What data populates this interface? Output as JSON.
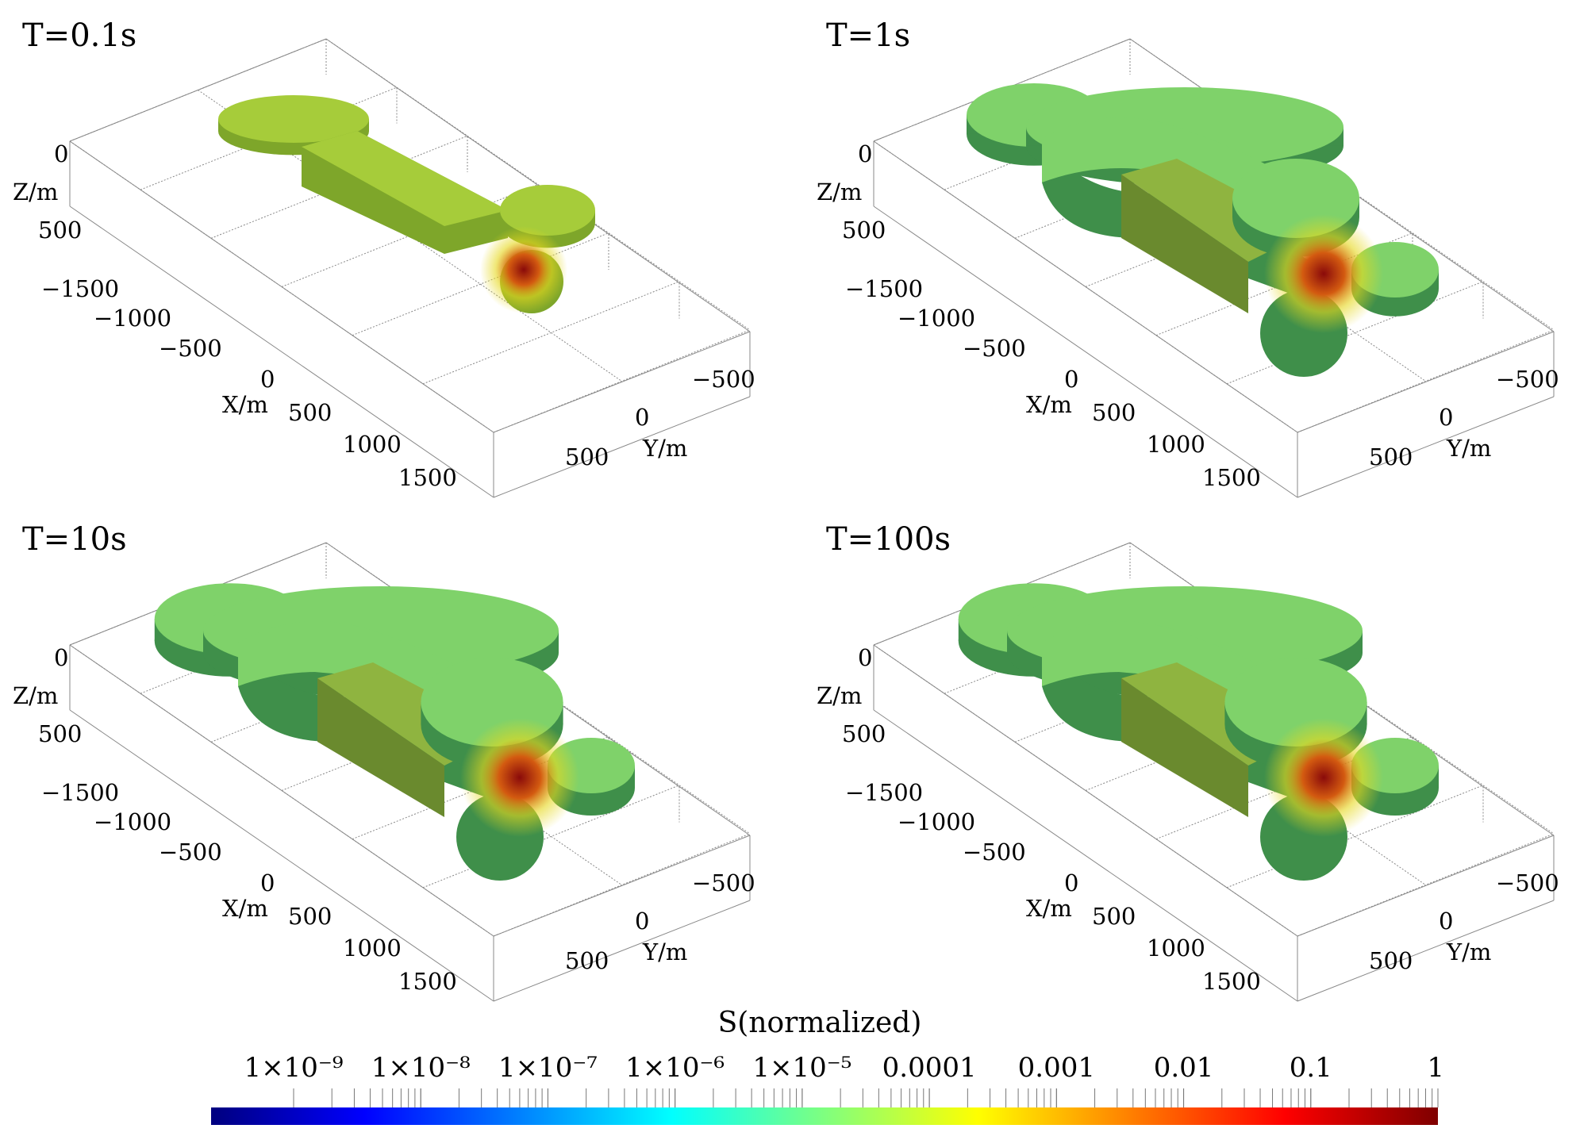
{
  "panels": [
    {
      "title": "T=0.1s",
      "stage": 0
    },
    {
      "title": "T=1s",
      "stage": 1
    },
    {
      "title": "T=10s",
      "stage": 2
    },
    {
      "title": "T=100s",
      "stage": 3
    }
  ],
  "axes": {
    "z_label": "Z/m",
    "z_ticks": [
      "0",
      "500"
    ],
    "x_label": "X/m",
    "x_ticks": [
      "−1500",
      "−1000",
      "−500",
      "0",
      "500",
      "1000",
      "1500"
    ],
    "y_label": "Y/m",
    "y_ticks": [
      "−500",
      "0",
      "500"
    ]
  },
  "colorbar": {
    "title": "S(normalized)",
    "labels": [
      "1×10⁻⁹",
      "1×10⁻⁸",
      "1×10⁻⁷",
      "1×10⁻⁶",
      "1×10⁻⁵",
      "0.0001",
      "0.001",
      "0.01",
      "0.1",
      "1"
    ],
    "colors": [
      "#00007f",
      "#0000ff",
      "#007fff",
      "#00ffff",
      "#7fff7f",
      "#ffff00",
      "#ff7f00",
      "#ff0000",
      "#7f0000"
    ]
  },
  "colors": {
    "body_top": "#7fd26a",
    "body_side": "#3f8f4a",
    "hot_center": "#8a0a0a",
    "yellow": "#e6d81e"
  }
}
